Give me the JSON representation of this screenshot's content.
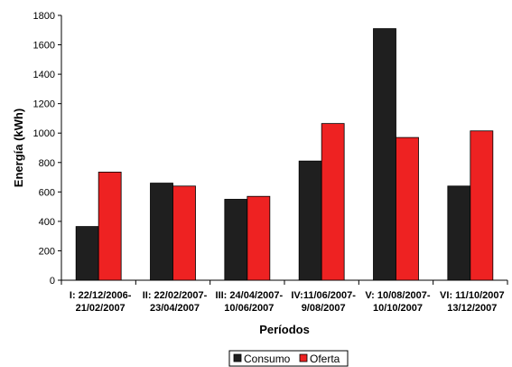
{
  "chart_data": {
    "type": "bar",
    "categories": [
      [
        "I: 22/12/2006-",
        "21/02/2007"
      ],
      [
        "II: 22/02/2007-",
        "23/04/2007"
      ],
      [
        "III: 24/04/2007-",
        "10/06/2007"
      ],
      [
        "IV:11/06/2007-",
        "9/08/2007"
      ],
      [
        "V: 10/08/2007-",
        "10/10/2007"
      ],
      [
        "VI: 11/10/2007",
        "13/12/2007"
      ]
    ],
    "series": [
      {
        "name": "Consumo",
        "values": [
          365,
          660,
          550,
          810,
          1710,
          640
        ],
        "color": "#1f1f1f"
      },
      {
        "name": "Oferta",
        "values": [
          735,
          640,
          570,
          1065,
          970,
          1015
        ],
        "color": "#ee2222"
      }
    ],
    "title": "",
    "xlabel": "Períodos",
    "ylabel": "Energía (kWh)",
    "ylim": [
      0,
      1800
    ],
    "yticks": [
      0,
      200,
      400,
      600,
      800,
      1000,
      1200,
      1400,
      1600,
      1800
    ],
    "grid": false,
    "legend": "bottom"
  }
}
